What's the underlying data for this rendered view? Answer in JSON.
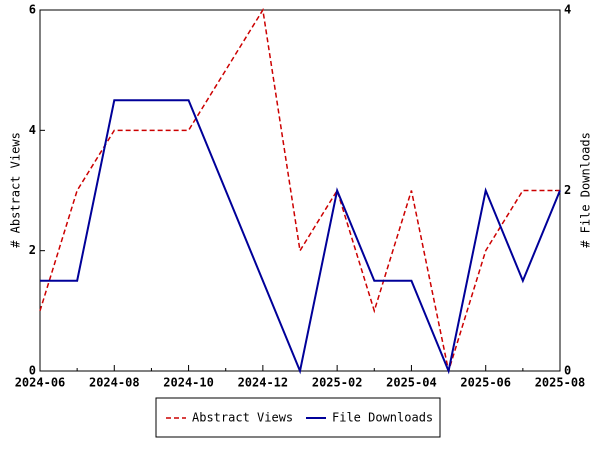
{
  "chart_data": {
    "type": "line",
    "categories": [
      "2024-06",
      null,
      "2024-08",
      null,
      "2024-10",
      null,
      "2024-12",
      null,
      "2025-02",
      null,
      "2025-04",
      null,
      "2025-06",
      null,
      "2025-08"
    ],
    "series": [
      {
        "name": "Abstract Views",
        "color": "#cc0000",
        "dash": true,
        "values": [
          1,
          3,
          4,
          4,
          4,
          5,
          6,
          2,
          3,
          1,
          3,
          0,
          2,
          3,
          3
        ]
      },
      {
        "name": "File Downloads",
        "color": "#000099",
        "axis": "y2",
        "values": [
          1,
          1,
          3,
          3,
          3,
          2,
          1,
          0,
          2,
          1,
          1,
          0,
          2,
          1,
          2
        ]
      }
    ],
    "ylabel": "# Abstract Views",
    "y2label": "# File Downloads",
    "ylim": [
      0,
      6
    ],
    "yticks": [
      0,
      2,
      4,
      6
    ],
    "y2lim": [
      0,
      4
    ],
    "y2ticks": [
      0,
      2,
      4
    ],
    "legend": "bottom"
  }
}
